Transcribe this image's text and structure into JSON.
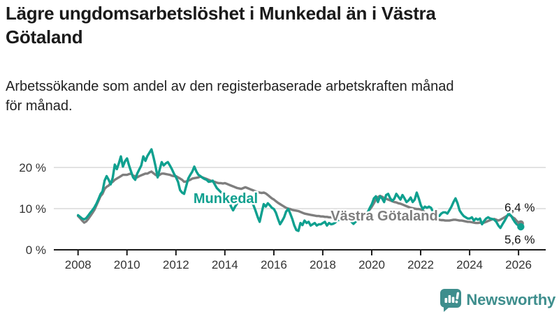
{
  "header": {
    "title_lines": [
      "Lägre ungdomsarbetslöshet i Munkedal än i Västra",
      "Götaland"
    ],
    "title": "Lägre ungdomsarbetslöshet i Munkedal än i Västra Götaland",
    "subtitle_lines": [
      "Arbetssökande som andel av den registerbaserade arbetskraften månad",
      "för månad."
    ],
    "subtitle": "Arbetssökande som andel av den registerbaserade arbetskraften månad för månad."
  },
  "chart_data": {
    "type": "line",
    "title": "Lägre ungdomsarbetslöshet i Munkedal än i Västra Götaland",
    "xlabel": "",
    "ylabel": "Arbetssökande som andel av den registerbaserade arbetskraften",
    "frequency": "monthly",
    "x_start": "2008-01",
    "x_end": "2026-02",
    "ylim": [
      0,
      25
    ],
    "grid": "horizontal",
    "legend_position": "inline-labels",
    "yticks": [
      {
        "value": 20,
        "label": "20 %"
      },
      {
        "value": 10,
        "label": "10 %"
      },
      {
        "value": 0,
        "label": "0 %"
      }
    ],
    "xticks": [
      {
        "value": 2008,
        "label": "2008"
      },
      {
        "value": 2010,
        "label": "2010"
      },
      {
        "value": 2012,
        "label": "2012"
      },
      {
        "value": 2014,
        "label": "2014"
      },
      {
        "value": 2016,
        "label": "2016"
      },
      {
        "value": 2018,
        "label": "2018"
      },
      {
        "value": 2020,
        "label": "2020"
      },
      {
        "value": 2022,
        "label": "2022"
      },
      {
        "value": 2024,
        "label": "2024"
      },
      {
        "value": 2026,
        "label": "2026"
      }
    ],
    "series": [
      {
        "name": "Munkedal",
        "color": "#0FA08F",
        "end_label": "5,6 %",
        "end_value": 5.6,
        "values": [
          8.4,
          8.0,
          7.6,
          7.4,
          7.7,
          8.3,
          9.0,
          9.6,
          10.3,
          11.2,
          12.3,
          13.5,
          14.2,
          16.8,
          17.9,
          17.0,
          15.9,
          17.5,
          20.7,
          19.6,
          21.0,
          22.7,
          20.2,
          21.5,
          22.2,
          20.5,
          19.0,
          17.6,
          17.0,
          18.5,
          19.5,
          20.5,
          22.7,
          21.6,
          22.8,
          23.6,
          24.4,
          22.5,
          20.2,
          17.6,
          19.5,
          21.3,
          20.5,
          21.0,
          21.3,
          20.5,
          19.6,
          18.5,
          17.6,
          16.5,
          14.5,
          13.9,
          13.6,
          15.5,
          17.3,
          18.2,
          19.0,
          20.2,
          19.0,
          18.2,
          17.9,
          17.5,
          17.2,
          17.0,
          16.5,
          16.6,
          16.8,
          15.9,
          15.0,
          14.5,
          14.0,
          13.8,
          13.5,
          12.8,
          11.8,
          10.5,
          9.6,
          10.5,
          11.3,
          11.8,
          12.3,
          12.8,
          13.0,
          12.8,
          12.5,
          11.8,
          10.8,
          9.5,
          8.0,
          6.8,
          9.0,
          11.1,
          10.5,
          11.3,
          10.8,
          10.2,
          9.9,
          9.0,
          7.5,
          6.2,
          7.0,
          7.9,
          9.3,
          9.9,
          8.8,
          7.5,
          5.9,
          4.8,
          4.6,
          6.5,
          6.0,
          7.1,
          6.5,
          6.8,
          5.9,
          6.2,
          6.5,
          5.9,
          6.2,
          6.2,
          6.5,
          6.8,
          5.9,
          6.5,
          6.2,
          6.3,
          6.6,
          7.1,
          7.3,
          7.1,
          7.2,
          7.1,
          7.1,
          7.6,
          6.8,
          6.3,
          6.8,
          7.3,
          7.1,
          7.6,
          7.9,
          8.5,
          9.1,
          10.2,
          11.1,
          12.5,
          13.0,
          11.6,
          13.0,
          12.5,
          11.6,
          13.3,
          13.6,
          12.5,
          11.9,
          12.4,
          13.6,
          12.9,
          12.2,
          13.3,
          12.5,
          11.6,
          12.0,
          12.7,
          11.6,
          12.2,
          13.9,
          12.5,
          10.8,
          9.9,
          10.5,
          10.2,
          10.5,
          10.2,
          9.1,
          7.6,
          8.2,
          8.2,
          8.8,
          9.1,
          9.1,
          8.8,
          9.6,
          10.5,
          11.6,
          12.5,
          11.3,
          9.6,
          8.8,
          8.2,
          7.9,
          7.6,
          7.6,
          7.9,
          7.1,
          7.6,
          7.3,
          7.6,
          6.2,
          7.0,
          7.6,
          7.9,
          7.6,
          7.5,
          7.3,
          6.8,
          5.9,
          5.3,
          6.2,
          7.0,
          7.9,
          8.8,
          8.5,
          7.6,
          6.8,
          6.2,
          5.9,
          5.6
        ]
      },
      {
        "name": "Västra Götaland",
        "color": "#7E7E7E",
        "end_label": "6,4 %",
        "end_value": 6.4,
        "values": [
          8.2,
          7.7,
          7.1,
          6.6,
          6.9,
          7.5,
          8.2,
          8.9,
          9.7,
          10.8,
          11.9,
          13.0,
          13.6,
          14.8,
          15.3,
          15.6,
          16.2,
          16.5,
          17.0,
          17.3,
          17.6,
          17.9,
          18.2,
          18.2,
          18.2,
          18.4,
          18.5,
          18.0,
          17.9,
          17.6,
          17.9,
          18.1,
          18.3,
          18.5,
          18.5,
          18.8,
          19.0,
          18.6,
          18.2,
          17.9,
          18.2,
          18.5,
          18.5,
          18.4,
          18.3,
          18.2,
          18.0,
          17.9,
          17.9,
          17.6,
          17.3,
          17.0,
          16.5,
          16.6,
          16.8,
          17.0,
          17.3,
          17.4,
          17.5,
          17.6,
          17.8,
          17.6,
          17.4,
          17.2,
          17.0,
          16.8,
          16.6,
          16.5,
          16.3,
          16.2,
          16.2,
          16.1,
          16.2,
          16.0,
          15.8,
          15.6,
          15.4,
          15.2,
          15.0,
          14.9,
          14.8,
          15.0,
          15.2,
          15.0,
          14.8,
          14.6,
          14.4,
          14.2,
          14.0,
          13.9,
          13.8,
          13.9,
          13.7,
          13.3,
          12.9,
          12.5,
          12.2,
          11.8,
          11.4,
          11.1,
          10.8,
          10.5,
          10.2,
          10.0,
          9.9,
          9.7,
          9.6,
          9.5,
          9.4,
          9.2,
          9.0,
          8.8,
          8.7,
          8.6,
          8.5,
          8.4,
          8.3,
          8.2,
          8.2,
          8.1,
          8.1,
          8.0,
          8.0,
          7.9,
          7.9,
          7.8,
          7.8,
          7.8,
          7.7,
          7.7,
          7.7,
          7.7,
          7.8,
          7.8,
          7.9,
          7.9,
          8.0,
          8.1,
          8.2,
          8.3,
          8.5,
          8.8,
          9.2,
          9.8,
          10.5,
          11.3,
          12.2,
          12.8,
          13.1,
          12.9,
          12.6,
          12.4,
          12.2,
          12.0,
          11.8,
          11.6,
          11.5,
          11.3,
          11.2,
          11.0,
          10.8,
          10.6,
          10.4,
          10.2,
          10.1,
          10.0,
          9.9,
          9.9,
          9.8,
          9.5,
          9.1,
          8.7,
          8.3,
          8.0,
          7.8,
          7.6,
          7.4,
          7.3,
          7.2,
          7.2,
          7.1,
          7.1,
          7.1,
          7.2,
          7.3,
          7.3,
          7.2,
          7.1,
          7.1,
          7.0,
          6.9,
          6.8,
          6.8,
          6.7,
          6.6,
          6.5,
          6.5,
          6.6,
          6.5,
          6.6,
          6.8,
          7.0,
          7.2,
          7.4,
          7.5,
          7.3,
          7.1,
          7.3,
          7.6,
          7.9,
          8.2,
          8.5,
          8.3,
          7.9,
          7.6,
          7.0,
          6.6,
          6.4
        ]
      }
    ]
  },
  "colors": {
    "accent_teal": "#0FA08F",
    "series_gray": "#7E7E7E",
    "gridline": "#D8D8D8",
    "axis": "#1A1A1A",
    "logo_teal": "#3E8E8D"
  },
  "logo": {
    "brand": "Newsworthy"
  }
}
